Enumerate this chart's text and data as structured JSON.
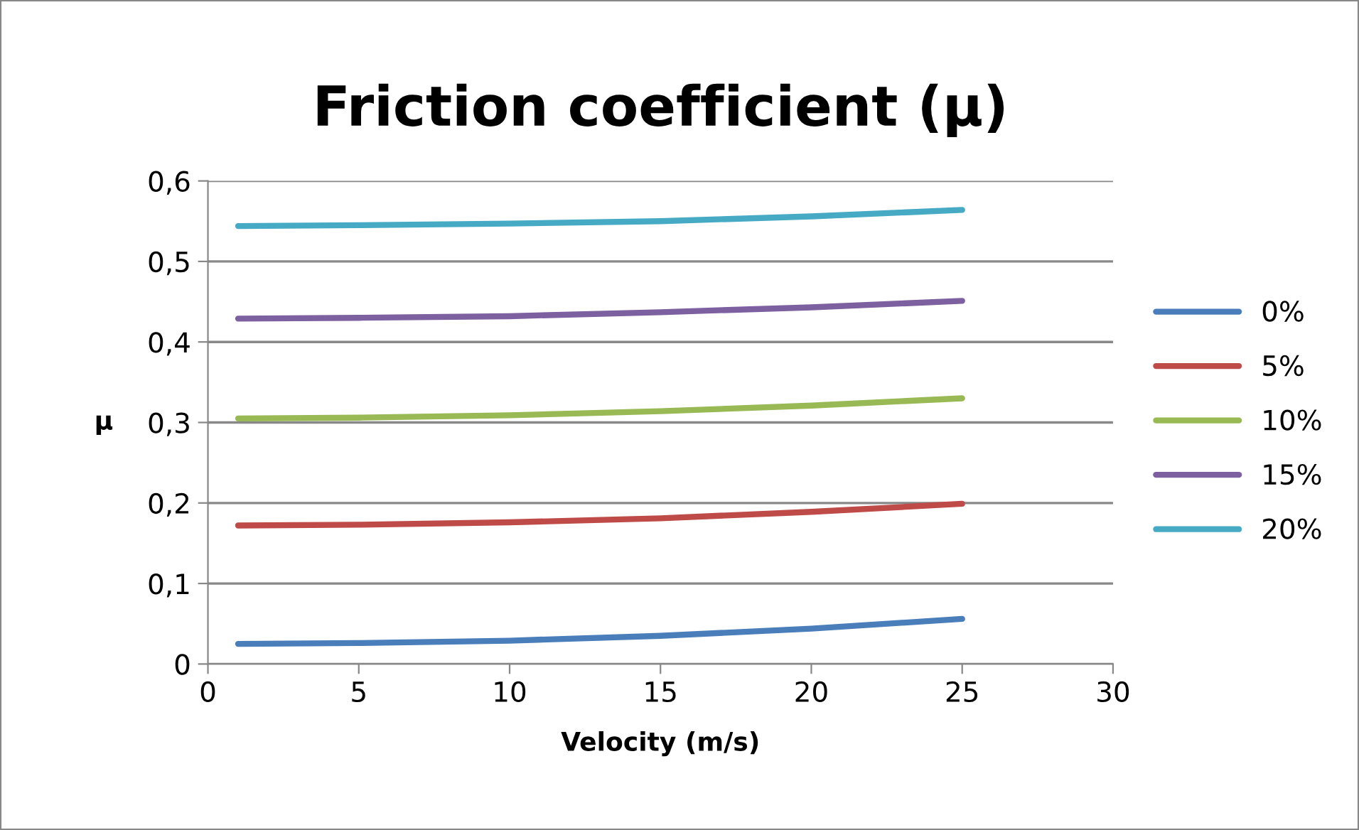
{
  "chart_data": {
    "type": "line",
    "title": "Friction coefficient (μ)",
    "xlabel": "Velocity (m/s)",
    "ylabel": "μ",
    "x": [
      1,
      5,
      10,
      15,
      20,
      25
    ],
    "series": [
      {
        "name": "0%",
        "color": "#4a7ebb",
        "values": [
          0.025,
          0.026,
          0.029,
          0.035,
          0.044,
          0.056
        ]
      },
      {
        "name": "5%",
        "color": "#be4b48",
        "values": [
          0.172,
          0.173,
          0.176,
          0.181,
          0.189,
          0.199
        ]
      },
      {
        "name": "10%",
        "color": "#98b954",
        "values": [
          0.305,
          0.306,
          0.309,
          0.314,
          0.321,
          0.33
        ]
      },
      {
        "name": "15%",
        "color": "#7d60a0",
        "values": [
          0.429,
          0.43,
          0.432,
          0.437,
          0.443,
          0.451
        ]
      },
      {
        "name": "20%",
        "color": "#46aac5",
        "values": [
          0.544,
          0.545,
          0.547,
          0.55,
          0.556,
          0.564
        ]
      }
    ],
    "xlim": [
      0,
      30
    ],
    "xticks": [
      0,
      5,
      10,
      15,
      20,
      25,
      30
    ],
    "ylim": [
      0,
      0.6
    ],
    "yticks": [
      0,
      {
        "value": 0.1,
        "label": "0,1"
      },
      {
        "value": 0.2,
        "label": "0,2"
      },
      {
        "value": 0.3,
        "label": "0,3"
      },
      {
        "value": 0.4,
        "label": "0,4"
      },
      {
        "value": 0.5,
        "label": "0,5"
      },
      {
        "value": 0.6,
        "label": "0,6"
      }
    ],
    "grid": "y",
    "legend": "right",
    "marker": "none",
    "line_style": "solid"
  }
}
